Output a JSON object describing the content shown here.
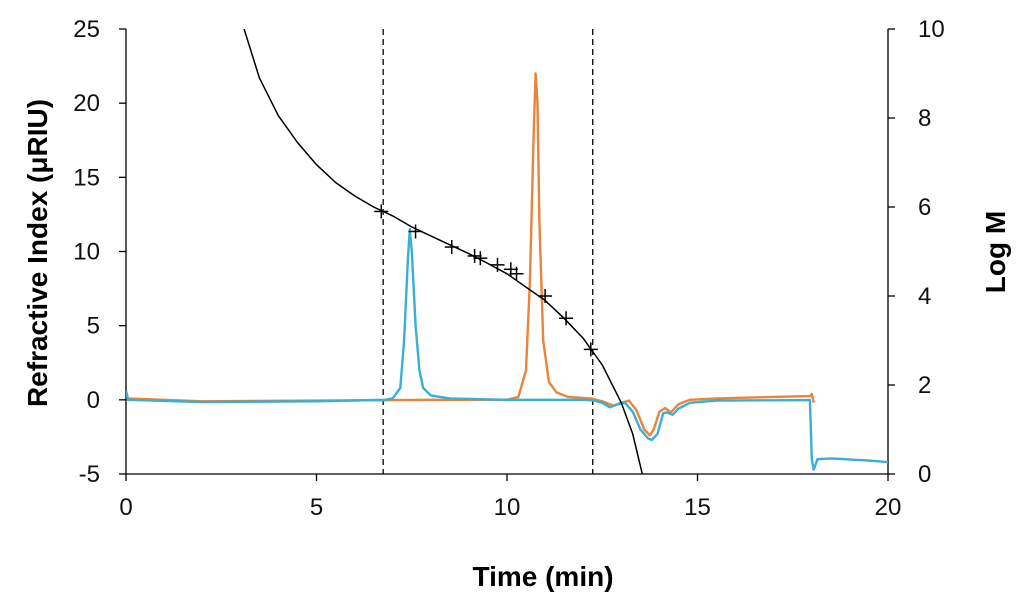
{
  "chart_data": {
    "type": "line",
    "title": "",
    "xlabel": "Time (min)",
    "ylabel": "Refractive Index (μRIU)",
    "ylabel_right": "Log M",
    "xlim": [
      0,
      20
    ],
    "ylim": [
      -5,
      25
    ],
    "ylim_right": [
      0,
      10
    ],
    "x_ticks": [
      0,
      5,
      10,
      15,
      20
    ],
    "y_ticks": [
      -5,
      0,
      5,
      10,
      15,
      20,
      25
    ],
    "y_right_ticks": [
      0,
      2,
      4,
      6,
      8,
      10
    ],
    "grid": false,
    "legend": "none",
    "vlines": [
      6.75,
      12.25
    ],
    "series": [
      {
        "axis": "left",
        "color": "#e8843c",
        "points": [
          [
            0,
            0.6
          ],
          [
            0.05,
            0.1
          ],
          [
            2,
            -0.1
          ],
          [
            5,
            -0.05
          ],
          [
            8,
            0.0
          ],
          [
            9,
            0.0
          ],
          [
            10,
            0.0
          ],
          [
            10.3,
            0.2
          ],
          [
            10.5,
            2
          ],
          [
            10.6,
            8
          ],
          [
            10.7,
            18
          ],
          [
            10.75,
            22
          ],
          [
            10.8,
            20
          ],
          [
            10.85,
            12
          ],
          [
            10.95,
            4
          ],
          [
            11.1,
            1.2
          ],
          [
            11.3,
            0.5
          ],
          [
            11.6,
            0.2
          ],
          [
            12.2,
            0.1
          ],
          [
            12.5,
            -0.1
          ],
          [
            12.8,
            -0.4
          ],
          [
            13.0,
            -0.2
          ],
          [
            13.2,
            -0.05
          ],
          [
            13.4,
            -0.7
          ],
          [
            13.6,
            -2.0
          ],
          [
            13.75,
            -2.4
          ],
          [
            13.85,
            -2.0
          ],
          [
            14.0,
            -0.8
          ],
          [
            14.15,
            -0.55
          ],
          [
            14.3,
            -0.85
          ],
          [
            14.5,
            -0.3
          ],
          [
            14.8,
            0.0
          ],
          [
            15.5,
            0.1
          ],
          [
            17.0,
            0.2
          ],
          [
            17.95,
            0.25
          ],
          [
            18.0,
            0.4
          ],
          [
            18.05,
            -0.2
          ]
        ]
      },
      {
        "axis": "left",
        "color": "#3aaed4",
        "points": [
          [
            0,
            0.6
          ],
          [
            0.05,
            0.0
          ],
          [
            2,
            -0.15
          ],
          [
            5,
            -0.1
          ],
          [
            6.8,
            0.0
          ],
          [
            7.0,
            0.1
          ],
          [
            7.2,
            0.8
          ],
          [
            7.3,
            4
          ],
          [
            7.4,
            9.5
          ],
          [
            7.45,
            11.5
          ],
          [
            7.5,
            10
          ],
          [
            7.6,
            5
          ],
          [
            7.7,
            2
          ],
          [
            7.8,
            0.8
          ],
          [
            8.0,
            0.3
          ],
          [
            8.5,
            0.1
          ],
          [
            10,
            0.0
          ],
          [
            12,
            0.0
          ],
          [
            12.3,
            -0.05
          ],
          [
            12.5,
            -0.2
          ],
          [
            12.7,
            -0.5
          ],
          [
            12.9,
            -0.3
          ],
          [
            13.1,
            -0.2
          ],
          [
            13.3,
            -0.8
          ],
          [
            13.5,
            -2.0
          ],
          [
            13.7,
            -2.6
          ],
          [
            13.8,
            -2.7
          ],
          [
            13.95,
            -2.3
          ],
          [
            14.1,
            -0.9
          ],
          [
            14.2,
            -0.85
          ],
          [
            14.35,
            -1.0
          ],
          [
            14.5,
            -0.6
          ],
          [
            14.8,
            -0.2
          ],
          [
            15.5,
            -0.05
          ],
          [
            17.0,
            -0.03
          ],
          [
            17.95,
            -0.02
          ],
          [
            18.0,
            -4.0
          ],
          [
            18.05,
            -4.7
          ],
          [
            18.15,
            -4.0
          ],
          [
            18.5,
            -3.95
          ],
          [
            19.5,
            -4.1
          ],
          [
            20.0,
            -4.2
          ]
        ]
      },
      {
        "axis": "right",
        "color": "#000000",
        "points": [
          [
            3.1,
            10.0
          ],
          [
            3.5,
            8.9
          ],
          [
            4.0,
            8.05
          ],
          [
            4.5,
            7.45
          ],
          [
            5.0,
            6.95
          ],
          [
            5.5,
            6.55
          ],
          [
            6.0,
            6.25
          ],
          [
            6.5,
            6.0
          ],
          [
            7.0,
            5.8
          ],
          [
            7.5,
            5.55
          ],
          [
            8.0,
            5.35
          ],
          [
            8.5,
            5.15
          ],
          [
            9.0,
            4.95
          ],
          [
            9.5,
            4.73
          ],
          [
            10.0,
            4.5
          ],
          [
            10.5,
            4.2
          ],
          [
            11.0,
            3.9
          ],
          [
            11.5,
            3.5
          ],
          [
            12.0,
            3.05
          ],
          [
            12.5,
            2.45
          ],
          [
            13.0,
            1.6
          ],
          [
            13.3,
            0.9
          ],
          [
            13.55,
            0.0
          ]
        ]
      }
    ],
    "calibration_points": {
      "axis": "right",
      "marker": "plus",
      "x": [
        6.7,
        7.6,
        8.55,
        9.15,
        9.3,
        9.75,
        10.1,
        10.25,
        11.0,
        11.55,
        12.2
      ],
      "y": [
        5.9,
        5.45,
        5.1,
        4.9,
        4.85,
        4.7,
        4.6,
        4.5,
        4.0,
        3.5,
        2.8
      ]
    }
  }
}
